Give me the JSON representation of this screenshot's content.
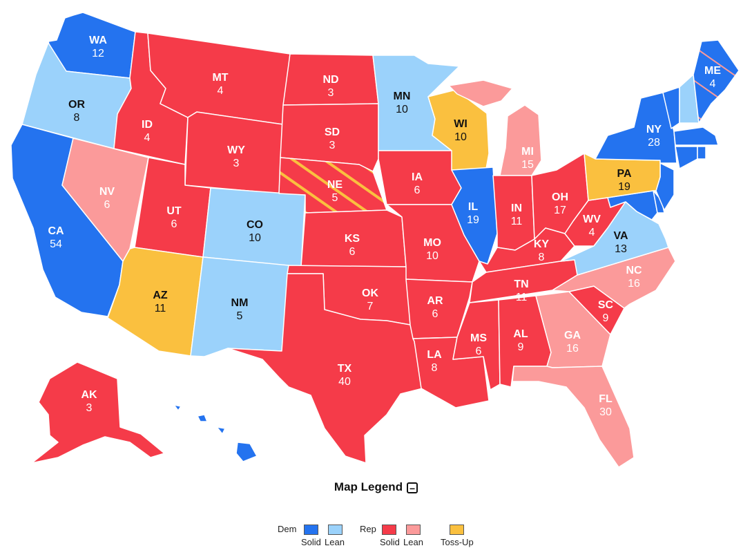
{
  "colors": {
    "dem_solid": "#2473ef",
    "dem_lean": "#9bd2fb",
    "rep_solid": "#f53b49",
    "rep_lean": "#fb9a9a",
    "tossup": "#fac03f"
  },
  "states": [
    {
      "abbr": "WA",
      "ev": "12",
      "rating": "dem_solid"
    },
    {
      "abbr": "OR",
      "ev": "8",
      "rating": "dem_lean"
    },
    {
      "abbr": "CA",
      "ev": "54",
      "rating": "dem_solid"
    },
    {
      "abbr": "NV",
      "ev": "6",
      "rating": "rep_lean"
    },
    {
      "abbr": "ID",
      "ev": "4",
      "rating": "rep_solid"
    },
    {
      "abbr": "MT",
      "ev": "4",
      "rating": "rep_solid"
    },
    {
      "abbr": "WY",
      "ev": "3",
      "rating": "rep_solid"
    },
    {
      "abbr": "UT",
      "ev": "6",
      "rating": "rep_solid"
    },
    {
      "abbr": "AZ",
      "ev": "11",
      "rating": "tossup"
    },
    {
      "abbr": "CO",
      "ev": "10",
      "rating": "dem_lean"
    },
    {
      "abbr": "NM",
      "ev": "5",
      "rating": "dem_lean"
    },
    {
      "abbr": "ND",
      "ev": "3",
      "rating": "rep_solid"
    },
    {
      "abbr": "SD",
      "ev": "3",
      "rating": "rep_solid"
    },
    {
      "abbr": "NE",
      "ev": "5",
      "rating": "rep_solid"
    },
    {
      "abbr": "KS",
      "ev": "6",
      "rating": "rep_solid"
    },
    {
      "abbr": "OK",
      "ev": "7",
      "rating": "rep_solid"
    },
    {
      "abbr": "TX",
      "ev": "40",
      "rating": "rep_solid"
    },
    {
      "abbr": "MN",
      "ev": "10",
      "rating": "dem_lean"
    },
    {
      "abbr": "IA",
      "ev": "6",
      "rating": "rep_solid"
    },
    {
      "abbr": "MO",
      "ev": "10",
      "rating": "rep_solid"
    },
    {
      "abbr": "AR",
      "ev": "6",
      "rating": "rep_solid"
    },
    {
      "abbr": "LA",
      "ev": "8",
      "rating": "rep_solid"
    },
    {
      "abbr": "WI",
      "ev": "10",
      "rating": "tossup"
    },
    {
      "abbr": "IL",
      "ev": "19",
      "rating": "dem_solid"
    },
    {
      "abbr": "MI",
      "ev": "15",
      "rating": "rep_lean"
    },
    {
      "abbr": "IN",
      "ev": "11",
      "rating": "rep_solid"
    },
    {
      "abbr": "OH",
      "ev": "17",
      "rating": "rep_solid"
    },
    {
      "abbr": "KY",
      "ev": "8",
      "rating": "rep_solid"
    },
    {
      "abbr": "TN",
      "ev": "11",
      "rating": "rep_solid"
    },
    {
      "abbr": "MS",
      "ev": "6",
      "rating": "rep_solid"
    },
    {
      "abbr": "AL",
      "ev": "9",
      "rating": "rep_solid"
    },
    {
      "abbr": "GA",
      "ev": "16",
      "rating": "rep_lean"
    },
    {
      "abbr": "FL",
      "ev": "30",
      "rating": "rep_lean"
    },
    {
      "abbr": "SC",
      "ev": "9",
      "rating": "rep_solid"
    },
    {
      "abbr": "NC",
      "ev": "16",
      "rating": "rep_lean"
    },
    {
      "abbr": "VA",
      "ev": "13",
      "rating": "dem_lean"
    },
    {
      "abbr": "WV",
      "ev": "4",
      "rating": "rep_solid"
    },
    {
      "abbr": "PA",
      "ev": "19",
      "rating": "tossup"
    },
    {
      "abbr": "NY",
      "ev": "28",
      "rating": "dem_solid"
    },
    {
      "abbr": "ME",
      "ev": "4",
      "rating": "dem_solid"
    },
    {
      "abbr": "AK",
      "ev": "3",
      "rating": "rep_solid"
    }
  ],
  "legend": {
    "title": "Map Legend",
    "toggle": "−",
    "dem_label": "Dem",
    "rep_label": "Rep",
    "solid_label": "Solid",
    "lean_label": "Lean",
    "tossup_label": "Toss-Up"
  }
}
